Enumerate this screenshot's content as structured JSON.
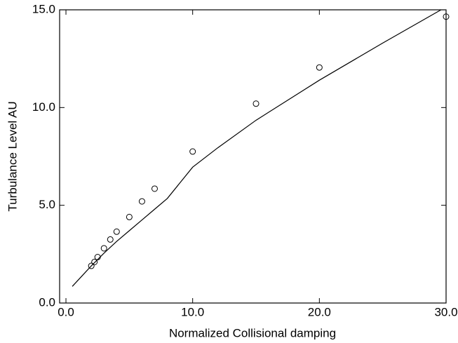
{
  "chart_data": {
    "type": "scatter",
    "x_label": "Normalized Collisional damping",
    "y_label": "Turbulance Level AU",
    "xlim": [
      -0.5,
      30
    ],
    "ylim": [
      0,
      15
    ],
    "xticks": [
      {
        "value": 0,
        "label": "0.0"
      },
      {
        "value": 10,
        "label": "10.0"
      },
      {
        "value": 20,
        "label": "20.0"
      },
      {
        "value": 30,
        "label": "30.0"
      }
    ],
    "yticks": [
      {
        "value": 0,
        "label": "0.0"
      },
      {
        "value": 5,
        "label": "5.0"
      },
      {
        "value": 10,
        "label": "10.0"
      },
      {
        "value": 15,
        "label": "15.0"
      }
    ],
    "series": [
      {
        "type": "scatter",
        "color": "#000000",
        "x": [
          2,
          2.25,
          2.5,
          3,
          3.5,
          4,
          5,
          6,
          7,
          10,
          15,
          20,
          30
        ],
        "values": [
          1.9,
          2.1,
          2.35,
          2.8,
          3.25,
          3.65,
          4.4,
          5.2,
          5.85,
          7.75,
          10.2,
          12.05,
          14.65
        ]
      },
      {
        "type": "line",
        "color": "#000000",
        "x": [
          0.5,
          1,
          1.5,
          2,
          3,
          4,
          5,
          6,
          7,
          8,
          10,
          12,
          15,
          20,
          25,
          29.6
        ],
        "values": [
          0.85,
          1.2,
          1.55,
          1.9,
          2.55,
          3.15,
          3.7,
          4.25,
          4.8,
          5.35,
          6.95,
          7.95,
          9.35,
          11.4,
          13.3,
          15
        ]
      }
    ]
  }
}
